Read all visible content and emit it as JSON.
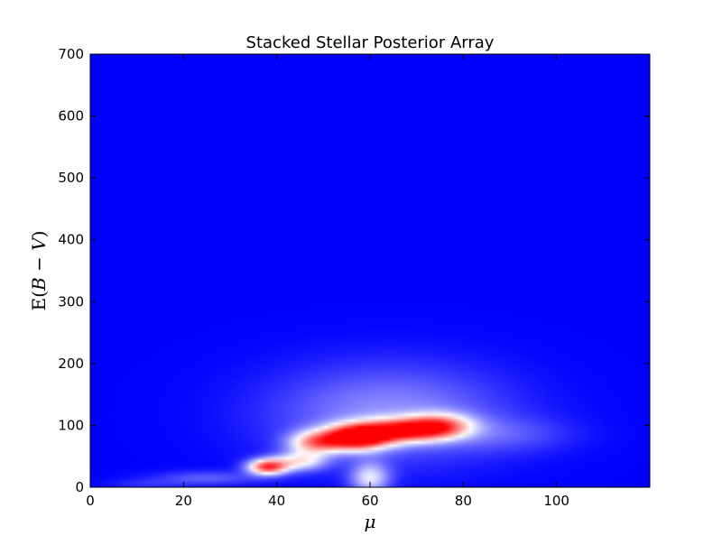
{
  "chart_data": {
    "type": "heatmap",
    "title": "Stacked Stellar Posterior Array",
    "xlabel": "μ",
    "ylabel_parts": {
      "prefix": "E(",
      "b": "B",
      "minus": " − ",
      "v": "V",
      "suffix": ")"
    },
    "xlim": [
      0,
      120
    ],
    "ylim": [
      0,
      700
    ],
    "x_ticks": [
      0,
      20,
      40,
      60,
      80,
      100
    ],
    "y_ticks": [
      0,
      100,
      200,
      300,
      400,
      500,
      600,
      700
    ],
    "grid": false,
    "colormap": {
      "low": "#0000ff",
      "mid": "#ffffff",
      "high": "#ff0000"
    },
    "background_color": "#0000ff",
    "density_components": [
      {
        "mu": 57,
        "ebv": 80,
        "sigma_mu": 5,
        "sigma_ebv": 14,
        "amplitude": 1.0
      },
      {
        "mu": 67,
        "ebv": 92,
        "sigma_mu": 7,
        "sigma_ebv": 13,
        "amplitude": 0.75
      },
      {
        "mu": 48,
        "ebv": 72,
        "sigma_mu": 4,
        "sigma_ebv": 13,
        "amplitude": 0.55
      },
      {
        "mu": 38,
        "ebv": 33,
        "sigma_mu": 3,
        "sigma_ebv": 9,
        "amplitude": 0.85
      },
      {
        "mu": 45,
        "ebv": 42,
        "sigma_mu": 4,
        "sigma_ebv": 11,
        "amplitude": 0.45
      },
      {
        "mu": 60,
        "ebv": 15,
        "sigma_mu": 3,
        "sigma_ebv": 18,
        "amplitude": 0.42
      },
      {
        "mu": 75,
        "ebv": 100,
        "sigma_mu": 5,
        "sigma_ebv": 14,
        "amplitude": 0.5
      },
      {
        "mu": 64,
        "ebv": 120,
        "sigma_mu": 18,
        "sigma_ebv": 55,
        "amplitude": 0.28
      },
      {
        "mu": 90,
        "ebv": 85,
        "sigma_mu": 10,
        "sigma_ebv": 20,
        "amplitude": 0.12
      },
      {
        "mu": 25,
        "ebv": 15,
        "sigma_mu": 8,
        "sigma_ebv": 8,
        "amplitude": 0.18
      },
      {
        "mu": 12,
        "ebv": 5,
        "sigma_mu": 6,
        "sigma_ebv": 6,
        "amplitude": 0.08
      }
    ]
  }
}
